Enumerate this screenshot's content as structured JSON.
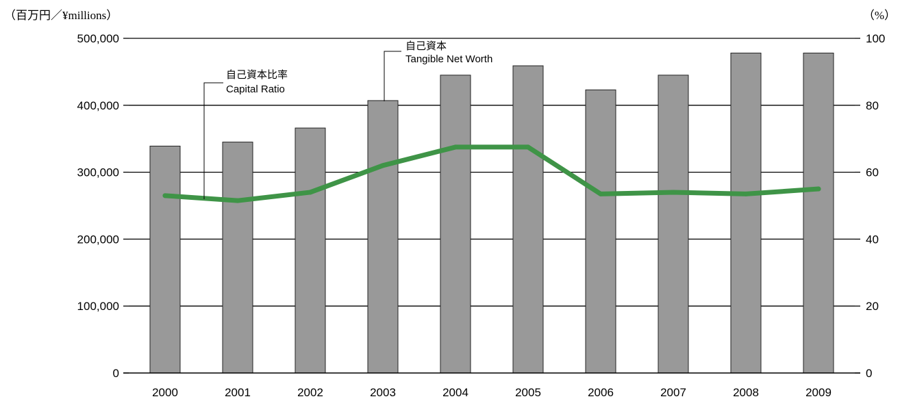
{
  "chart_data": {
    "type": "bar",
    "categories": [
      "2000",
      "2001",
      "2002",
      "2003",
      "2004",
      "2005",
      "2006",
      "2007",
      "2008",
      "2009"
    ],
    "series": [
      {
        "name": "自己資本 Tangible Net Worth",
        "axis": "left",
        "type": "bar",
        "values": [
          339000,
          345000,
          366000,
          407000,
          445000,
          459000,
          423000,
          445000,
          478000,
          478000
        ]
      },
      {
        "name": "自己資本比率 Capital Ratio",
        "axis": "right",
        "type": "line",
        "values": [
          53.0,
          51.5,
          54.0,
          62.0,
          67.5,
          67.5,
          53.5,
          54.0,
          53.5,
          55.0
        ]
      }
    ],
    "left_axis": {
      "unit_label": "（百万円／¥millions）",
      "ylim": [
        0,
        500000
      ],
      "ticks": [
        "0",
        "100,000",
        "200,000",
        "300,000",
        "400,000",
        "500,000"
      ]
    },
    "right_axis": {
      "unit_label": "（%）",
      "ylim": [
        0,
        100
      ],
      "ticks": [
        "0",
        "20",
        "40",
        "60",
        "80",
        "100"
      ]
    },
    "annotations": {
      "bars": {
        "line1": "自己資本",
        "line2": "Tangible Net Worth"
      },
      "line": {
        "line1": "自己資本比率",
        "line2": "Capital Ratio"
      }
    },
    "grid": true,
    "colors": {
      "bar": "#999999",
      "bar_border": "#222222",
      "line": "#3f9447",
      "grid": "#000000"
    }
  }
}
